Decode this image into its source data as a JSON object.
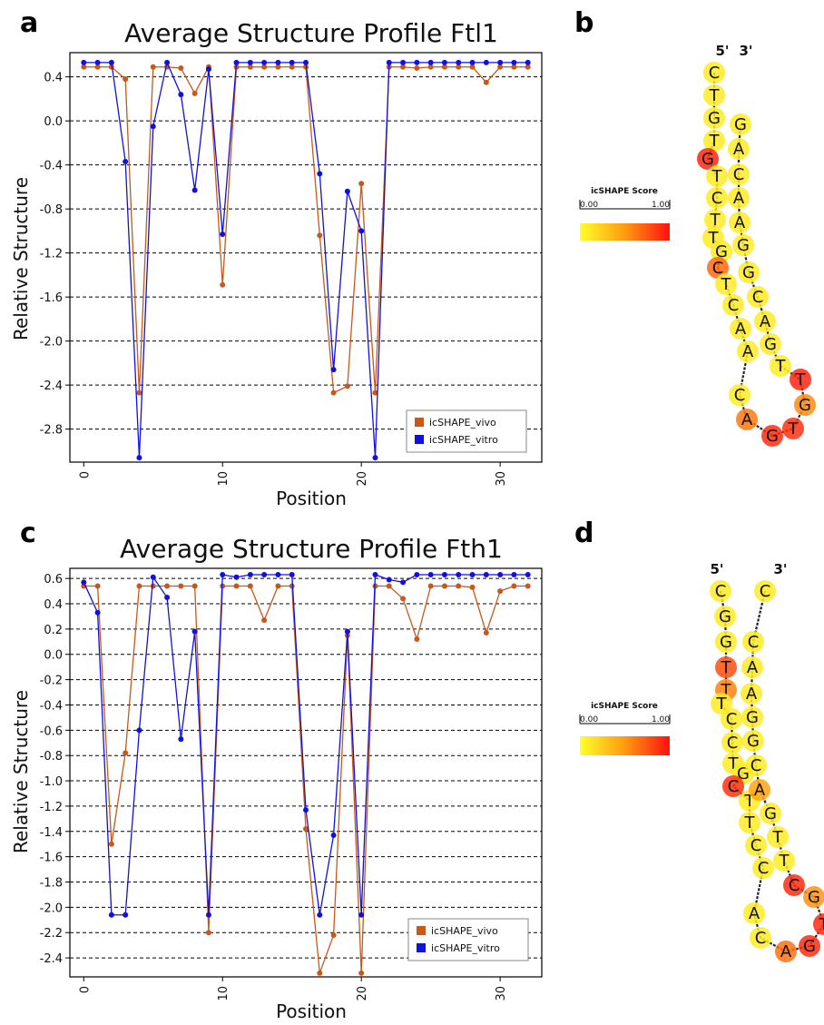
{
  "panels": {
    "a": "a",
    "b": "b",
    "c": "c",
    "d": "d"
  },
  "colors": {
    "vivo": "#c8581a",
    "vitro": "#1010e0",
    "grid": "#000000",
    "scale_low": "#ffff2a",
    "scale_mid": "#ff9a10",
    "scale_high": "#ff1010"
  },
  "chart_data": [
    {
      "panel": "a",
      "type": "line",
      "title": "Average Structure Profile Ftl1",
      "xlabel": "Position",
      "ylabel": "Relative Structure",
      "xlim": [
        -1,
        33
      ],
      "ylim": [
        -3.1,
        0.62
      ],
      "xticks": [
        0,
        10,
        20,
        30
      ],
      "yticks": [
        0.4,
        0.0,
        -0.4,
        -0.8,
        -1.2,
        -1.6,
        -2.0,
        -2.4,
        -2.8
      ],
      "ytick_labels": [
        "0.4",
        "0.0",
        "-0.4",
        "-0.8",
        "-1.2",
        "-1.6",
        "-2.0",
        "-2.4",
        "-2.8"
      ],
      "grid": "horizontal dashed",
      "legend": {
        "position": "lower-right",
        "entries": [
          "icSHAPE_vivo",
          "icSHAPE_vitro"
        ]
      },
      "x": [
        0,
        1,
        2,
        3,
        4,
        5,
        6,
        7,
        8,
        9,
        10,
        11,
        12,
        13,
        14,
        15,
        16,
        17,
        18,
        19,
        20,
        21,
        22,
        23,
        24,
        25,
        26,
        27,
        28,
        29,
        30,
        31,
        32
      ],
      "series": [
        {
          "name": "icSHAPE_vivo",
          "values": [
            0.49,
            0.49,
            0.49,
            0.38,
            -2.47,
            0.49,
            0.49,
            0.48,
            0.25,
            0.49,
            -1.49,
            0.49,
            0.49,
            0.49,
            0.49,
            0.49,
            0.49,
            -1.04,
            -2.47,
            -2.41,
            -0.57,
            -2.47,
            0.49,
            0.49,
            0.48,
            0.49,
            0.49,
            0.49,
            0.49,
            0.35,
            0.49,
            0.49,
            0.49
          ]
        },
        {
          "name": "icSHAPE_vitro",
          "values": [
            0.53,
            0.53,
            0.53,
            -0.37,
            -3.06,
            -0.05,
            0.53,
            0.24,
            -0.63,
            0.47,
            -1.03,
            0.53,
            0.53,
            0.53,
            0.53,
            0.53,
            0.53,
            -0.48,
            -2.26,
            -0.64,
            -1.0,
            -3.06,
            0.53,
            0.53,
            0.53,
            0.53,
            0.53,
            0.53,
            0.53,
            0.53,
            0.53,
            0.53,
            0.53
          ]
        }
      ]
    },
    {
      "panel": "c",
      "type": "line",
      "title": "Average Structure Profile Fth1",
      "xlabel": "Position",
      "ylabel": "Relative Structure",
      "xlim": [
        -1,
        33
      ],
      "ylim": [
        -2.55,
        0.68
      ],
      "xticks": [
        0,
        10,
        20,
        30
      ],
      "yticks": [
        0.6,
        0.4,
        0.2,
        0.0,
        -0.2,
        -0.4,
        -0.6,
        -0.8,
        -1.0,
        -1.2,
        -1.4,
        -1.6,
        -1.8,
        -2.0,
        -2.2,
        -2.4
      ],
      "ytick_labels": [
        "0.6",
        "0.4",
        "0.2",
        "0.0",
        "-0.2",
        "-0.4",
        "-0.6",
        "-0.8",
        "-1.0",
        "-1.2",
        "-1.4",
        "-1.6",
        "-1.8",
        "-2.0",
        "-2.2",
        "-2.4"
      ],
      "grid": "horizontal dashed",
      "legend": {
        "position": "lower-right",
        "entries": [
          "icSHAPE_vivo",
          "icSHAPE_vitro"
        ]
      },
      "x": [
        0,
        1,
        2,
        3,
        4,
        5,
        6,
        7,
        8,
        9,
        10,
        11,
        12,
        13,
        14,
        15,
        16,
        17,
        18,
        19,
        20,
        21,
        22,
        23,
        24,
        25,
        26,
        27,
        28,
        29,
        30,
        31,
        32
      ],
      "series": [
        {
          "name": "icSHAPE_vivo",
          "values": [
            0.54,
            0.54,
            -1.5,
            -0.78,
            0.54,
            0.54,
            0.54,
            0.54,
            0.54,
            -2.2,
            0.54,
            0.54,
            0.54,
            0.27,
            0.54,
            0.54,
            -1.38,
            -2.52,
            -2.22,
            0.15,
            -2.52,
            0.54,
            0.54,
            0.44,
            0.12,
            0.54,
            0.54,
            0.54,
            0.53,
            0.17,
            0.5,
            0.54,
            0.54
          ]
        },
        {
          "name": "icSHAPE_vitro",
          "values": [
            0.57,
            0.33,
            -2.06,
            -2.06,
            -0.6,
            0.61,
            0.45,
            -0.67,
            0.18,
            -2.06,
            0.63,
            0.61,
            0.63,
            0.63,
            0.63,
            0.63,
            -1.23,
            -2.06,
            -1.43,
            0.18,
            -2.06,
            0.63,
            0.59,
            0.57,
            0.63,
            0.63,
            0.63,
            0.63,
            0.63,
            0.63,
            0.63,
            0.63,
            0.63
          ]
        }
      ]
    }
  ],
  "colorbars": [
    {
      "title": "icSHAPE Score",
      "min_label": "0.00",
      "max_label": "1.00"
    },
    {
      "title": "icSHAPE Score",
      "min_label": "0.00",
      "max_label": "1.00"
    }
  ],
  "structures": [
    {
      "panel": "b",
      "five_prime": "5'",
      "three_prime": "3'",
      "nucleotides": [
        "C",
        "T",
        "G",
        "T",
        "G",
        "T",
        "C",
        "T",
        "T",
        "G",
        "C",
        "T",
        "C",
        "A",
        "A",
        "C",
        "A",
        "G",
        "T",
        "G",
        "T",
        "T",
        "G",
        "A",
        "C",
        "G",
        "G",
        "A",
        "A",
        "C",
        "A",
        "G"
      ],
      "scores": [
        0.1,
        0.1,
        0.1,
        0.1,
        0.92,
        0.1,
        0.1,
        0.1,
        0.1,
        0.1,
        0.68,
        0.1,
        0.1,
        0.1,
        0.1,
        0.1,
        0.62,
        0.9,
        0.88,
        0.55,
        0.92,
        0.1,
        0.1,
        0.1,
        0.1,
        0.1,
        0.1,
        0.1,
        0.1,
        0.1,
        0.1,
        0.1
      ]
    },
    {
      "panel": "d",
      "five_prime": "5'",
      "three_prime": "3'",
      "nucleotides": [
        "C",
        "G",
        "G",
        "T",
        "T",
        "T",
        "C",
        "C",
        "T",
        "G",
        "C",
        "T",
        "T",
        "C",
        "C",
        "A",
        "C",
        "A",
        "G",
        "T",
        "G",
        "C",
        "T",
        "T",
        "G",
        "A",
        "C",
        "G",
        "G",
        "A",
        "A",
        "C",
        "C"
      ],
      "scores": [
        0.1,
        0.1,
        0.1,
        0.78,
        0.58,
        0.1,
        0.1,
        0.1,
        0.1,
        0.1,
        0.88,
        0.1,
        0.1,
        0.1,
        0.1,
        0.1,
        0.1,
        0.65,
        0.9,
        0.9,
        0.52,
        0.9,
        0.1,
        0.1,
        0.1,
        0.45,
        0.1,
        0.1,
        0.1,
        0.1,
        0.1,
        0.1,
        0.1
      ]
    }
  ]
}
